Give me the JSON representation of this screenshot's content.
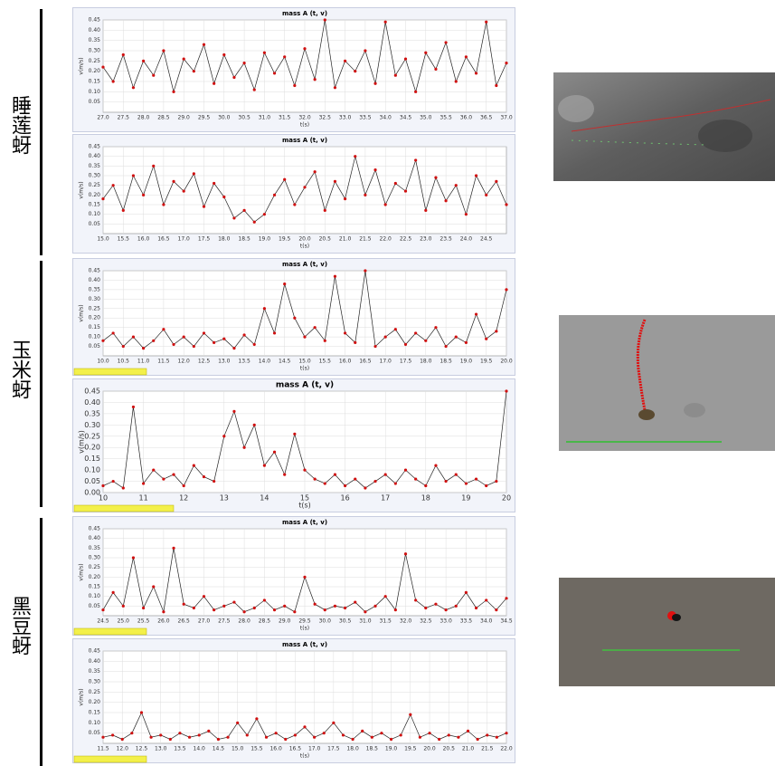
{
  "groups": [
    "睡莲蚜",
    "玉米蚜",
    "黑豆蚜"
  ],
  "chart_data": [
    {
      "type": "line",
      "title": "mass A (t, v)",
      "xlabel": "t(s)",
      "ylabel": "v(m/s)",
      "color": "#d01010",
      "grid": true,
      "xlim": [
        27,
        37
      ],
      "ylim": [
        0,
        0.45
      ],
      "xticks": [
        {
          "value": 27,
          "label": "27.0"
        },
        27.5,
        {
          "value": 28,
          "label": "28.0"
        },
        28.5,
        {
          "value": 29,
          "label": "29.0"
        },
        29.5,
        {
          "value": 30,
          "label": "30.0"
        },
        30.5,
        {
          "value": 31,
          "label": "31.0"
        },
        31.5,
        {
          "value": 32,
          "label": "32.0"
        },
        32.5,
        {
          "value": 33,
          "label": "33.0"
        },
        33.5,
        {
          "value": 34,
          "label": "34.0"
        },
        34.5,
        {
          "value": 35,
          "label": "35.0"
        },
        35.5,
        {
          "value": 36,
          "label": "36.0"
        },
        36.5,
        {
          "value": 37,
          "label": "37.0"
        }
      ],
      "yticks": [
        0.05,
        {
          "value": 0.1,
          "label": "0.10"
        },
        0.15,
        {
          "value": 0.2,
          "label": "0.20"
        },
        0.25,
        {
          "value": 0.3,
          "label": "0.30"
        },
        0.35,
        {
          "value": 0.4,
          "label": "0.40"
        },
        0.45
      ],
      "x": [
        27,
        27.25,
        27.5,
        27.75,
        28,
        28.25,
        28.5,
        28.75,
        29,
        29.25,
        29.5,
        29.75,
        30,
        30.25,
        30.5,
        30.75,
        31,
        31.25,
        31.5,
        31.75,
        32,
        32.25,
        32.5,
        32.75,
        33,
        33.25,
        33.5,
        33.75,
        34,
        34.25,
        34.5,
        34.75,
        35,
        35.25,
        35.5,
        35.75,
        36,
        36.25,
        36.5,
        36.75,
        37
      ],
      "values": [
        0.22,
        0.15,
        0.28,
        0.12,
        0.25,
        0.18,
        0.3,
        0.1,
        0.26,
        0.2,
        0.33,
        0.14,
        0.28,
        0.17,
        0.24,
        0.11,
        0.29,
        0.19,
        0.27,
        0.13,
        0.31,
        0.16,
        0.45,
        0.12,
        0.25,
        0.2,
        0.3,
        0.14,
        0.44,
        0.18,
        0.26,
        0.1,
        0.29,
        0.21,
        0.34,
        0.15,
        0.27,
        0.19,
        0.44,
        0.13,
        0.24
      ]
    },
    {
      "type": "line",
      "title": "mass A (t, v)",
      "xlabel": "t(s)",
      "ylabel": "v(m/s)",
      "color": "#d01010",
      "grid": true,
      "xlim": [
        15,
        25
      ],
      "ylim": [
        0,
        0.45
      ],
      "xticks": [
        {
          "value": 15,
          "label": "15.0"
        },
        15.5,
        {
          "value": 16,
          "label": "16.0"
        },
        16.5,
        {
          "value": 17,
          "label": "17.0"
        },
        17.5,
        {
          "value": 18,
          "label": "18.0"
        },
        18.5,
        {
          "value": 19,
          "label": "19.0"
        },
        19.5,
        {
          "value": 20,
          "label": "20.0"
        },
        20.5,
        {
          "value": 21,
          "label": "21.0"
        },
        21.5,
        {
          "value": 22,
          "label": "22.0"
        },
        22.5,
        {
          "value": 23,
          "label": "23.0"
        },
        23.5,
        {
          "value": 24,
          "label": "24.0"
        },
        24.5
      ],
      "yticks": [
        0.05,
        {
          "value": 0.1,
          "label": "0.10"
        },
        0.15,
        {
          "value": 0.2,
          "label": "0.20"
        },
        0.25,
        {
          "value": 0.3,
          "label": "0.30"
        },
        0.35,
        {
          "value": 0.4,
          "label": "0.40"
        },
        0.45
      ],
      "x": [
        15,
        15.25,
        15.5,
        15.75,
        16,
        16.25,
        16.5,
        16.75,
        17,
        17.25,
        17.5,
        17.75,
        18,
        18.25,
        18.5,
        18.75,
        19,
        19.25,
        19.5,
        19.75,
        20,
        20.25,
        20.5,
        20.75,
        21,
        21.25,
        21.5,
        21.75,
        22,
        22.25,
        22.5,
        22.75,
        23,
        23.25,
        23.5,
        23.75,
        24,
        24.25,
        24.5,
        24.75,
        25
      ],
      "values": [
        0.18,
        0.25,
        0.12,
        0.3,
        0.2,
        0.35,
        0.15,
        0.27,
        0.22,
        0.31,
        0.14,
        0.26,
        0.19,
        0.08,
        0.12,
        0.06,
        0.1,
        0.2,
        0.28,
        0.15,
        0.24,
        0.32,
        0.12,
        0.27,
        0.18,
        0.4,
        0.2,
        0.33,
        0.15,
        0.26,
        0.22,
        0.38,
        0.12,
        0.29,
        0.17,
        0.25,
        0.1,
        0.3,
        0.2,
        0.27,
        0.15
      ]
    },
    {
      "type": "line",
      "title": "mass A (t, v)",
      "xlabel": "t(s)",
      "ylabel": "v(m/s)",
      "color": "#d01010",
      "grid": true,
      "xlim": [
        10,
        20
      ],
      "ylim": [
        0,
        0.45
      ],
      "xticks": [
        {
          "value": 10,
          "label": "10.0"
        },
        10.5,
        {
          "value": 11,
          "label": "11.0"
        },
        11.5,
        {
          "value": 12,
          "label": "12.0"
        },
        12.5,
        {
          "value": 13,
          "label": "13.0"
        },
        13.5,
        {
          "value": 14,
          "label": "14.0"
        },
        14.5,
        {
          "value": 15,
          "label": "15.0"
        },
        15.5,
        {
          "value": 16,
          "label": "16.0"
        },
        16.5,
        {
          "value": 17,
          "label": "17.0"
        },
        17.5,
        {
          "value": 18,
          "label": "18.0"
        },
        18.5,
        {
          "value": 19,
          "label": "19.0"
        },
        19.5,
        {
          "value": 20,
          "label": "20.0"
        }
      ],
      "yticks": [
        0.05,
        {
          "value": 0.1,
          "label": "0.10"
        },
        0.15,
        {
          "value": 0.2,
          "label": "0.20"
        },
        0.25,
        {
          "value": 0.3,
          "label": "0.30"
        },
        0.35,
        {
          "value": 0.4,
          "label": "0.40"
        },
        0.45
      ],
      "x": [
        10,
        10.25,
        10.5,
        10.75,
        11,
        11.25,
        11.5,
        11.75,
        12,
        12.25,
        12.5,
        12.75,
        13,
        13.25,
        13.5,
        13.75,
        14,
        14.25,
        14.5,
        14.75,
        15,
        15.25,
        15.5,
        15.75,
        16,
        16.25,
        16.5,
        16.75,
        17,
        17.25,
        17.5,
        17.75,
        18,
        18.25,
        18.5,
        18.75,
        19,
        19.25,
        19.5,
        19.75,
        20
      ],
      "values": [
        0.08,
        0.12,
        0.05,
        0.1,
        0.04,
        0.08,
        0.14,
        0.06,
        0.1,
        0.05,
        0.12,
        0.07,
        0.09,
        0.04,
        0.11,
        0.06,
        0.25,
        0.12,
        0.38,
        0.2,
        0.1,
        0.15,
        0.08,
        0.42,
        0.12,
        0.07,
        0.45,
        0.05,
        0.1,
        0.14,
        0.06,
        0.12,
        0.08,
        0.15,
        0.05,
        0.1,
        0.07,
        0.22,
        0.09,
        0.13,
        0.35
      ]
    },
    {
      "type": "line",
      "title": "mass A (t, v)",
      "xlabel": "t(s)",
      "ylabel": "v(m/s)",
      "color": "#d01010",
      "grid": true,
      "xlim": [
        10,
        20
      ],
      "ylim": [
        0,
        0.45
      ],
      "xticks": [
        10,
        11,
        12,
        13,
        14,
        15,
        16,
        17,
        18,
        19,
        20
      ],
      "yticks": [
        {
          "value": 0,
          "label": "0.00"
        },
        0.05,
        {
          "value": 0.1,
          "label": "0.10"
        },
        0.15,
        {
          "value": 0.2,
          "label": "0.20"
        },
        0.25,
        {
          "value": 0.3,
          "label": "0.30"
        },
        0.35,
        {
          "value": 0.4,
          "label": "0.40"
        },
        0.45
      ],
      "x": [
        10,
        10.25,
        10.5,
        10.75,
        11,
        11.25,
        11.5,
        11.75,
        12,
        12.25,
        12.5,
        12.75,
        13,
        13.25,
        13.5,
        13.75,
        14,
        14.25,
        14.5,
        14.75,
        15,
        15.25,
        15.5,
        15.75,
        16,
        16.25,
        16.5,
        16.75,
        17,
        17.25,
        17.5,
        17.75,
        18,
        18.25,
        18.5,
        18.75,
        19,
        19.25,
        19.5,
        19.75,
        20
      ],
      "values": [
        0.03,
        0.05,
        0.02,
        0.38,
        0.04,
        0.1,
        0.06,
        0.08,
        0.03,
        0.12,
        0.07,
        0.05,
        0.25,
        0.36,
        0.2,
        0.3,
        0.12,
        0.18,
        0.08,
        0.26,
        0.1,
        0.06,
        0.04,
        0.08,
        0.03,
        0.06,
        0.02,
        0.05,
        0.08,
        0.04,
        0.1,
        0.06,
        0.03,
        0.12,
        0.05,
        0.08,
        0.04,
        0.06,
        0.03,
        0.05,
        0.45
      ]
    },
    {
      "type": "line",
      "title": "mass A (t, v)",
      "xlabel": "t(s)",
      "ylabel": "v(m/s)",
      "color": "#d01010",
      "grid": true,
      "xlim": [
        24.5,
        34.5
      ],
      "ylim": [
        0,
        0.45
      ],
      "xticks": [
        24.5,
        {
          "value": 25,
          "label": "25.0"
        },
        25.5,
        {
          "value": 26,
          "label": "26.0"
        },
        26.5,
        {
          "value": 27,
          "label": "27.0"
        },
        27.5,
        {
          "value": 28,
          "label": "28.0"
        },
        28.5,
        {
          "value": 29,
          "label": "29.0"
        },
        29.5,
        {
          "value": 30,
          "label": "30.0"
        },
        30.5,
        {
          "value": 31,
          "label": "31.0"
        },
        31.5,
        {
          "value": 32,
          "label": "32.0"
        },
        32.5,
        {
          "value": 33,
          "label": "33.0"
        },
        33.5,
        {
          "value": 34,
          "label": "34.0"
        },
        34.5
      ],
      "yticks": [
        0.05,
        {
          "value": 0.1,
          "label": "0.10"
        },
        0.15,
        {
          "value": 0.2,
          "label": "0.20"
        },
        0.25,
        {
          "value": 0.3,
          "label": "0.30"
        },
        0.35,
        {
          "value": 0.4,
          "label": "0.40"
        },
        0.45
      ],
      "x": [
        24.5,
        24.75,
        25,
        25.25,
        25.5,
        25.75,
        26,
        26.25,
        26.5,
        26.75,
        27,
        27.25,
        27.5,
        27.75,
        28,
        28.25,
        28.5,
        28.75,
        29,
        29.25,
        29.5,
        29.75,
        30,
        30.25,
        30.5,
        30.75,
        31,
        31.25,
        31.5,
        31.75,
        32,
        32.25,
        32.5,
        32.75,
        33,
        33.25,
        33.5,
        33.75,
        34,
        34.25,
        34.5
      ],
      "values": [
        0.03,
        0.12,
        0.05,
        0.3,
        0.04,
        0.15,
        0.02,
        0.35,
        0.06,
        0.04,
        0.1,
        0.03,
        0.05,
        0.07,
        0.02,
        0.04,
        0.08,
        0.03,
        0.05,
        0.02,
        0.2,
        0.06,
        0.03,
        0.05,
        0.04,
        0.07,
        0.02,
        0.05,
        0.1,
        0.03,
        0.32,
        0.08,
        0.04,
        0.06,
        0.03,
        0.05,
        0.12,
        0.04,
        0.08,
        0.03,
        0.09
      ]
    },
    {
      "type": "line",
      "title": "mass A (t, v)",
      "xlabel": "t(s)",
      "ylabel": "v(m/s)",
      "color": "#d01010",
      "grid": true,
      "xlim": [
        11.5,
        22
      ],
      "ylim": [
        0,
        0.45
      ],
      "xticks": [
        11.5,
        {
          "value": 12,
          "label": "12.0"
        },
        12.5,
        {
          "value": 13,
          "label": "13.0"
        },
        13.5,
        {
          "value": 14,
          "label": "14.0"
        },
        14.5,
        {
          "value": 15,
          "label": "15.0"
        },
        15.5,
        {
          "value": 16,
          "label": "16.0"
        },
        16.5,
        {
          "value": 17,
          "label": "17.0"
        },
        17.5,
        {
          "value": 18,
          "label": "18.0"
        },
        18.5,
        {
          "value": 19,
          "label": "19.0"
        },
        19.5,
        {
          "value": 20,
          "label": "20.0"
        },
        20.5,
        {
          "value": 21,
          "label": "21.0"
        },
        21.5,
        {
          "value": 22,
          "label": "22.0"
        }
      ],
      "yticks": [
        0.05,
        {
          "value": 0.1,
          "label": "0.10"
        },
        0.15,
        {
          "value": 0.2,
          "label": "0.20"
        },
        0.25,
        {
          "value": 0.3,
          "label": "0.30"
        },
        0.35,
        {
          "value": 0.4,
          "label": "0.40"
        },
        0.45
      ],
      "x": [
        11.5,
        11.75,
        12,
        12.25,
        12.5,
        12.75,
        13,
        13.25,
        13.5,
        13.75,
        14,
        14.25,
        14.5,
        14.75,
        15,
        15.25,
        15.5,
        15.75,
        16,
        16.25,
        16.5,
        16.75,
        17,
        17.25,
        17.5,
        17.75,
        18,
        18.25,
        18.5,
        18.75,
        19,
        19.25,
        19.5,
        19.75,
        20,
        20.25,
        20.5,
        20.75,
        21,
        21.25,
        21.5,
        21.75,
        22
      ],
      "values": [
        0.03,
        0.04,
        0.02,
        0.05,
        0.15,
        0.03,
        0.04,
        0.02,
        0.05,
        0.03,
        0.04,
        0.06,
        0.02,
        0.03,
        0.1,
        0.04,
        0.12,
        0.03,
        0.05,
        0.02,
        0.04,
        0.08,
        0.03,
        0.05,
        0.1,
        0.04,
        0.02,
        0.06,
        0.03,
        0.05,
        0.02,
        0.04,
        0.14,
        0.03,
        0.05,
        0.02,
        0.04,
        0.03,
        0.06,
        0.02,
        0.04,
        0.03,
        0.05
      ]
    }
  ]
}
